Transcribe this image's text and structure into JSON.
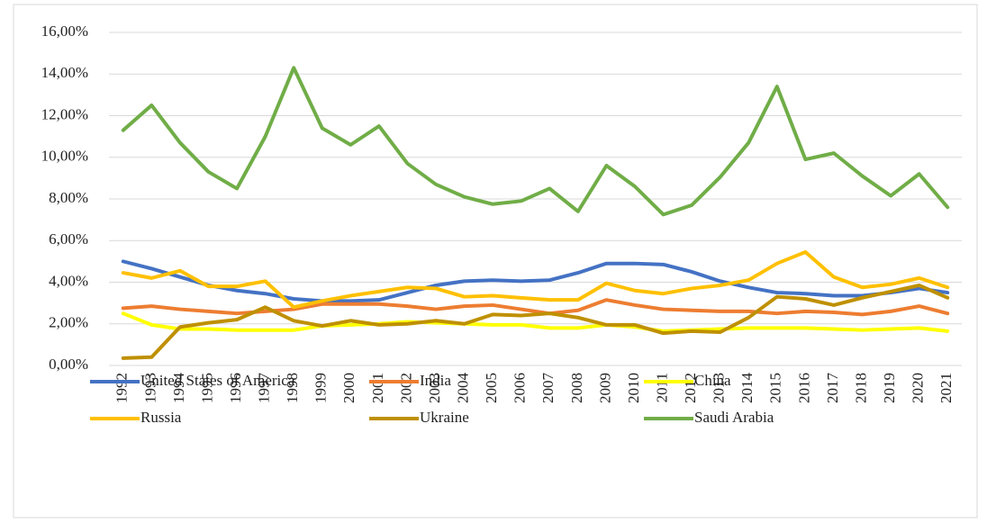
{
  "chart_data": {
    "type": "line",
    "categories": [
      "1992",
      "1993",
      "1994",
      "1995",
      "1996",
      "1997",
      "1998",
      "1999",
      "2000",
      "2001",
      "2002",
      "2003",
      "2004",
      "2005",
      "2006",
      "2007",
      "2008",
      "2009",
      "2010",
      "2011",
      "2012",
      "2013",
      "2014",
      "2015",
      "2016",
      "2017",
      "2018",
      "2019",
      "2020",
      "2021"
    ],
    "series": [
      {
        "name": "United States of America",
        "color": "#4472c4",
        "values": [
          5.0,
          4.65,
          4.25,
          3.85,
          3.6,
          3.45,
          3.2,
          3.1,
          3.1,
          3.15,
          3.5,
          3.85,
          4.05,
          4.1,
          4.05,
          4.1,
          4.45,
          4.9,
          4.9,
          4.85,
          4.5,
          4.05,
          3.75,
          3.5,
          3.45,
          3.35,
          3.35,
          3.5,
          3.7,
          3.5
        ]
      },
      {
        "name": "India",
        "color": "#ed7d31",
        "values": [
          2.75,
          2.85,
          2.7,
          2.6,
          2.5,
          2.6,
          2.7,
          2.95,
          2.95,
          2.95,
          2.85,
          2.7,
          2.85,
          2.9,
          2.7,
          2.5,
          2.65,
          3.15,
          2.9,
          2.7,
          2.65,
          2.6,
          2.6,
          2.5,
          2.6,
          2.55,
          2.45,
          2.6,
          2.85,
          2.5
        ]
      },
      {
        "name": "China",
        "color": "#ffff00",
        "values": [
          2.5,
          1.95,
          1.75,
          1.75,
          1.7,
          1.7,
          1.7,
          1.9,
          1.95,
          2.0,
          2.1,
          2.05,
          2.0,
          1.95,
          1.95,
          1.8,
          1.8,
          1.95,
          1.85,
          1.65,
          1.7,
          1.75,
          1.8,
          1.8,
          1.8,
          1.75,
          1.7,
          1.75,
          1.8,
          1.65
        ]
      },
      {
        "name": "Russia",
        "color": "#ffc000",
        "values": [
          4.45,
          4.2,
          4.55,
          3.8,
          3.8,
          4.05,
          2.8,
          3.1,
          3.35,
          3.55,
          3.75,
          3.7,
          3.3,
          3.35,
          3.25,
          3.15,
          3.15,
          3.95,
          3.6,
          3.45,
          3.7,
          3.85,
          4.1,
          4.9,
          5.45,
          4.25,
          3.75,
          3.9,
          4.2,
          3.75
        ]
      },
      {
        "name": "Ukraine",
        "color": "#bf9000",
        "values": [
          0.35,
          0.4,
          1.85,
          2.05,
          2.2,
          2.8,
          2.15,
          1.9,
          2.15,
          1.95,
          2.0,
          2.15,
          2.0,
          2.45,
          2.4,
          2.5,
          2.3,
          1.95,
          1.95,
          1.55,
          1.65,
          1.6,
          2.3,
          3.3,
          3.2,
          2.9,
          3.25,
          3.55,
          3.85,
          3.25
        ]
      },
      {
        "name": "Saudi Arabia",
        "color": "#70ad47",
        "values": [
          11.3,
          12.5,
          10.7,
          9.3,
          8.5,
          11.0,
          14.3,
          11.4,
          10.6,
          11.5,
          9.7,
          8.7,
          8.1,
          7.75,
          7.9,
          8.5,
          7.4,
          9.6,
          8.6,
          7.25,
          7.7,
          9.05,
          10.7,
          13.4,
          9.9,
          10.2,
          9.1,
          8.15,
          9.2,
          7.6
        ]
      }
    ],
    "ylim": [
      0,
      16
    ],
    "yticks": [
      {
        "value": 0,
        "label": "0,00%"
      },
      {
        "value": 2,
        "label": "2,00%"
      },
      {
        "value": 4,
        "label": "4,00%"
      },
      {
        "value": 6,
        "label": "6,00%"
      },
      {
        "value": 8,
        "label": "8,00%"
      },
      {
        "value": 10,
        "label": "10,00%"
      },
      {
        "value": 12,
        "label": "12,00%"
      },
      {
        "value": 14,
        "label": "14,00%"
      },
      {
        "value": 16,
        "label": "16,00%"
      }
    ],
    "grid": true,
    "legend": "bottom"
  }
}
